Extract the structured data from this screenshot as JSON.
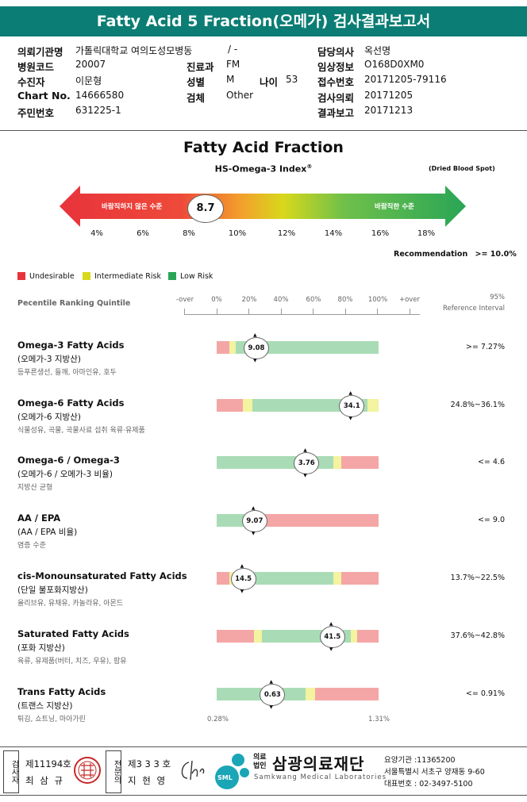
{
  "title": "Fatty Acid 5 Fraction(오메가) 검사결과보고서",
  "header": {
    "institution_label": "의뢰기관명",
    "institution": "가톨릭대학교 여의도성모병동",
    "institution_dash": "/ -",
    "hospital_code_label": "병원코드",
    "hospital_code": "20007",
    "examinee_label": "수진자",
    "examinee": "이문형",
    "chart_label": "Chart No.",
    "chart": "14666580",
    "resident_label": "주민번호",
    "resident": "631225-1",
    "dept_label": "진료과",
    "dept": "FM",
    "sex_label": "성별",
    "sex": "M",
    "age_label": "나이",
    "age": "53",
    "specimen_label": "검체",
    "specimen": "Other",
    "doctor_label": "담당의사",
    "doctor": "옥선명",
    "clinical_label": "임상정보",
    "clinical": "O168D0XM0",
    "receipt_label": "접수번호",
    "receipt": "20171205-79116",
    "request_label": "검사의뢰",
    "request": "20171205",
    "report_label": "결과보고",
    "report": "20171213"
  },
  "section_title": "Fatty Acid Fraction",
  "index_title": "HS-Omega-3 Index",
  "index_sup": "®",
  "specimen_note": "(Dried Blood Spot)",
  "arrow": {
    "left_label": "바람직하지 않은 수준",
    "right_label": "바람직한 수준",
    "value": "8.7",
    "ticks": [
      "4%",
      "6%",
      "8%",
      "10%",
      "12%",
      "14%",
      "16%",
      "18%"
    ]
  },
  "recommendation_label": "Recommendation",
  "recommendation_value": ">= 10.0%",
  "legend": [
    {
      "label": "Undesirable",
      "color": "#e8333b"
    },
    {
      "label": "Intermediate Risk",
      "color": "#d8d81c"
    },
    {
      "label": "Low Risk",
      "color": "#2aa556"
    }
  ],
  "scale": {
    "title": "Pecentile Ranking Quintile",
    "labels": [
      "-over",
      "0%",
      "20%",
      "40%",
      "60%",
      "80%",
      "100%",
      "+over"
    ],
    "ref_title_1": "95%",
    "ref_title_2": "Reference Interval"
  },
  "rows": [
    {
      "name": "Omega-3 Fatty Acids",
      "sub": "(오메가-3 지방산)",
      "foods": "등푸른생선, 들깨, 아마인유, 호두",
      "value": "9.08",
      "value_pos": 0.24,
      "ref": ">= 7.27%",
      "segments": [
        [
          "r",
          0,
          0.08
        ],
        [
          "y",
          0.08,
          0.12
        ],
        [
          "g",
          0.12,
          1.0
        ]
      ]
    },
    {
      "name": "Omega-6 Fatty Acids",
      "sub": "(오메가-6 지방산)",
      "foods": "식물성유, 곡물, 곡물사료 섭취 육류·유제품",
      "value": "34.1",
      "value_pos": 0.83,
      "ref": "24.8%~36.1%",
      "segments": [
        [
          "r",
          0,
          0.16
        ],
        [
          "y",
          0.16,
          0.22
        ],
        [
          "g",
          0.22,
          0.93
        ],
        [
          "y",
          0.93,
          1.0
        ]
      ]
    },
    {
      "name": "Omega-6 / Omega-3",
      "sub": "(오메가-6 / 오메가-3 비율)",
      "foods": "지방산 균형",
      "value": "3.76",
      "value_pos": 0.55,
      "ref": "<= 4.6",
      "segments": [
        [
          "g",
          0,
          0.72
        ],
        [
          "y",
          0.72,
          0.77
        ],
        [
          "r",
          0.77,
          1.0
        ]
      ]
    },
    {
      "name": "AA / EPA",
      "sub": "(AA / EPA 비율)",
      "foods": "염증 수준",
      "value": "9.07",
      "value_pos": 0.23,
      "ref": "<= 9.0",
      "segments": [
        [
          "g",
          0,
          0.2
        ],
        [
          "y",
          0.2,
          0.25
        ],
        [
          "r",
          0.25,
          1.0
        ]
      ]
    },
    {
      "name": "cis-Monounsaturated Fatty Acids",
      "sub": "(단일 불포화지방산)",
      "foods": "올리브유, 유채유, 카놀라유, 아몬드",
      "value": "14.5",
      "value_pos": 0.16,
      "ref": "13.7%~22.5%",
      "segments": [
        [
          "r",
          0,
          0.08
        ],
        [
          "y",
          0.08,
          0.12
        ],
        [
          "g",
          0.12,
          0.72
        ],
        [
          "y",
          0.72,
          0.77
        ],
        [
          "r",
          0.77,
          1.0
        ]
      ]
    },
    {
      "name": "Saturated Fatty Acids",
      "sub": "(포화 지방산)",
      "foods": "육류, 유제품(버터, 치즈, 우유), 팜유",
      "value": "41.5",
      "value_pos": 0.71,
      "ref": "37.6%~42.8%",
      "segments": [
        [
          "r",
          0,
          0.23
        ],
        [
          "y",
          0.23,
          0.28
        ],
        [
          "g",
          0.28,
          0.83
        ],
        [
          "y",
          0.83,
          0.87
        ],
        [
          "r",
          0.87,
          1.0
        ]
      ]
    },
    {
      "name": "Trans Fatty Acids",
      "sub": "(트랜스 지방산)",
      "foods": "튀김, 쇼트닝, 마아가린",
      "value": "0.63",
      "value_pos": 0.34,
      "ref": "<= 0.91%",
      "segments": [
        [
          "g",
          0,
          0.55
        ],
        [
          "y",
          0.55,
          0.61
        ],
        [
          "r",
          0.61,
          1.0
        ]
      ]
    }
  ],
  "bar_min": "0.28%",
  "bar_max": "1.31%",
  "colors": {
    "r": "#f4a6a6",
    "y": "#f3f3a0",
    "g": "#a9dcb6",
    "teal": "#0b7d74"
  },
  "footer": {
    "v1": "검사자",
    "v1_num": "제11194호",
    "v1_name": "최 삼 규",
    "v2": "전문의",
    "v2_num": "제3 3 3 호",
    "v2_name": "지 현 영",
    "logo": "SML",
    "org_prefix": "의료법인",
    "org": "삼광의료재단",
    "org_en": "Samkwang Medical Laboratories",
    "code": "요양기관 :11365200",
    "address": "서울특별시 서초구 양재동 9-60",
    "phone": "대표번호 : 02-3497-5100"
  }
}
